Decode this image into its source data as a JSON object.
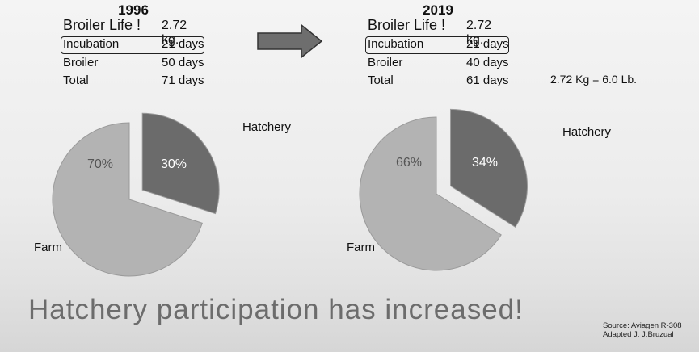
{
  "panels": [
    {
      "year": "1996",
      "life_label": "Broiler Life !",
      "life_value": "2.72 kg.",
      "incubation_label": "Incubation",
      "incubation_value": "21 days",
      "broiler_label": "Broiler",
      "broiler_value": "50 days",
      "total_label": "Total",
      "total_value": "71 days"
    },
    {
      "year": "2019",
      "life_label": "Broiler Life !",
      "life_value": "2.72 kg.",
      "incubation_label": "Incubation",
      "incubation_value": "21 days",
      "broiler_label": "Broiler",
      "broiler_value": "40 days",
      "total_label": "Total",
      "total_value": "61 days"
    }
  ],
  "conversion": "2.72 Kg = 6.0 Lb.",
  "tagline": "Hatchery participation has increased!",
  "source_line1": "Source: Aviagen R-308",
  "source_line2": "Adapted J. J.Bruzual",
  "colors": {
    "hatchery": "#6b6b6b",
    "farm": "#b3b3b3",
    "arrow": "#6e6e6e"
  },
  "chart_data": [
    {
      "type": "pie",
      "title": "1996",
      "categories": [
        "Hatchery",
        "Farm"
      ],
      "values": [
        30,
        70
      ],
      "labels": [
        "30%",
        "70%"
      ],
      "exploded": "Hatchery"
    },
    {
      "type": "pie",
      "title": "2019",
      "categories": [
        "Hatchery",
        "Farm"
      ],
      "values": [
        34,
        66
      ],
      "labels": [
        "34%",
        "66%"
      ],
      "exploded": "Hatchery"
    }
  ]
}
